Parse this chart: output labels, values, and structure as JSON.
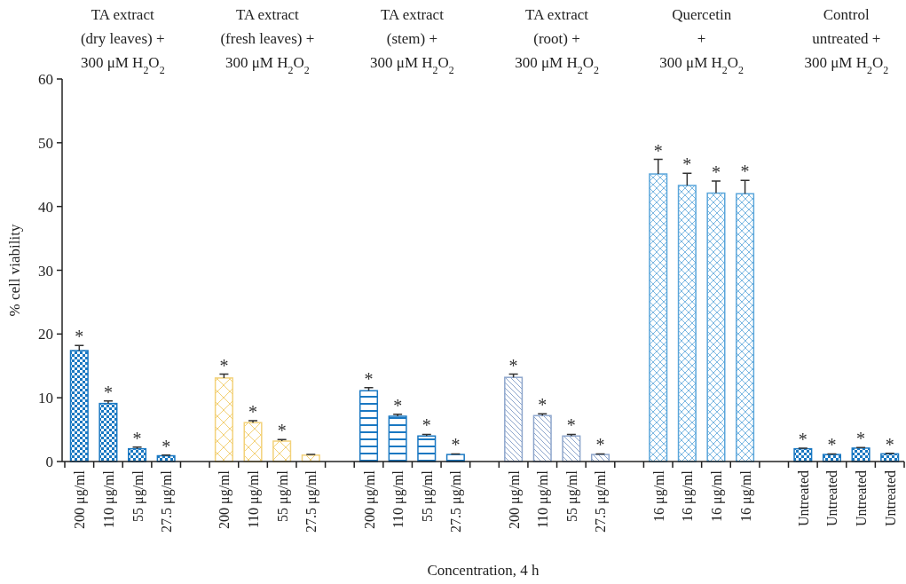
{
  "chart_data": {
    "type": "bar",
    "xlabel": "Concentration, 4 h",
    "ylabel": "% cell viability",
    "categories": [
      "200 μg/ml",
      "110 μg/ml",
      "55 μg/ml",
      "27.5 μg/ml",
      null,
      "200 μg/ml",
      "110 μg/ml",
      "55 μg/ml",
      "27.5 μg/ml",
      null,
      "200 μg/ml",
      "110 μg/ml",
      "55 μg/ml",
      "27.5 μg/ml",
      null,
      "200 μg/ml",
      "110 μg/ml",
      "55 μg/ml",
      "27.5 μg/ml",
      null,
      "16 μg/ml",
      "16 μg/ml",
      "16 μg/ml",
      "16 μg/ml",
      null,
      "Untreated",
      "Untreated",
      "Untreated",
      "Untreated"
    ],
    "values": [
      17.4,
      9.1,
      2.0,
      0.9,
      null,
      13.1,
      6.1,
      3.2,
      1.0,
      null,
      11.1,
      7.1,
      4.0,
      1.1,
      null,
      13.2,
      7.2,
      4.0,
      1.1,
      null,
      45.1,
      43.3,
      42.1,
      42.0,
      null,
      2.0,
      1.1,
      2.1,
      1.2
    ],
    "errors": [
      0.8,
      0.4,
      0.25,
      0.1,
      null,
      0.6,
      0.3,
      0.25,
      0.1,
      null,
      0.5,
      0.3,
      0.25,
      0.1,
      null,
      0.5,
      0.3,
      0.25,
      0.1,
      null,
      2.3,
      1.9,
      1.9,
      2.1,
      null,
      0.1,
      0.1,
      0.1,
      0.1
    ],
    "value_labels": [
      "*",
      "*",
      "*",
      "*",
      null,
      "*",
      "*",
      "*",
      null,
      null,
      "*",
      "*",
      "*",
      "*",
      null,
      "*",
      "*",
      "*",
      "*",
      null,
      "*",
      "*",
      "*",
      "*",
      null,
      "*",
      "*",
      "*",
      "*"
    ],
    "colors": [
      "#1a78c2",
      "#1a78c2",
      "#1a78c2",
      "#1a78c2",
      null,
      "#f3d27a",
      "#f3d27a",
      "#f3d27a",
      "#f3d27a",
      null,
      "#1a78c2",
      "#1a78c2",
      "#1a78c2",
      "#1a78c2",
      null,
      "#8ea6cc",
      "#8ea6cc",
      "#8ea6cc",
      "#8ea6cc",
      null,
      "#5aa6db",
      "#5aa6db",
      "#5aa6db",
      "#5aa6db",
      null,
      "#1a78c2",
      "#1a78c2",
      "#1a78c2",
      "#1a78c2"
    ],
    "ylim": [
      0,
      60
    ],
    "yticks": [
      0,
      10,
      20,
      30,
      40,
      50,
      60
    ],
    "grid": false,
    "annotations": [
      "TA extract\n(dry leaves) +\n300 μM H$_{2}$O$_{2}$",
      "TA extract\n(fresh leaves) +\n300 μM H$_{2}$O$_{2}$",
      "TA extract\n(stem) +\n300 μM H$_{2}$O$_{2}$",
      "TA extract\n(root) +\n300 μM H$_{2}$O$_{2}$",
      "Quercetin\n+\n300 μM H$_{2}$O$_{2}$",
      "Control\nuntreated +\n300 μM H$_{2}$O$_{2}$"
    ]
  }
}
